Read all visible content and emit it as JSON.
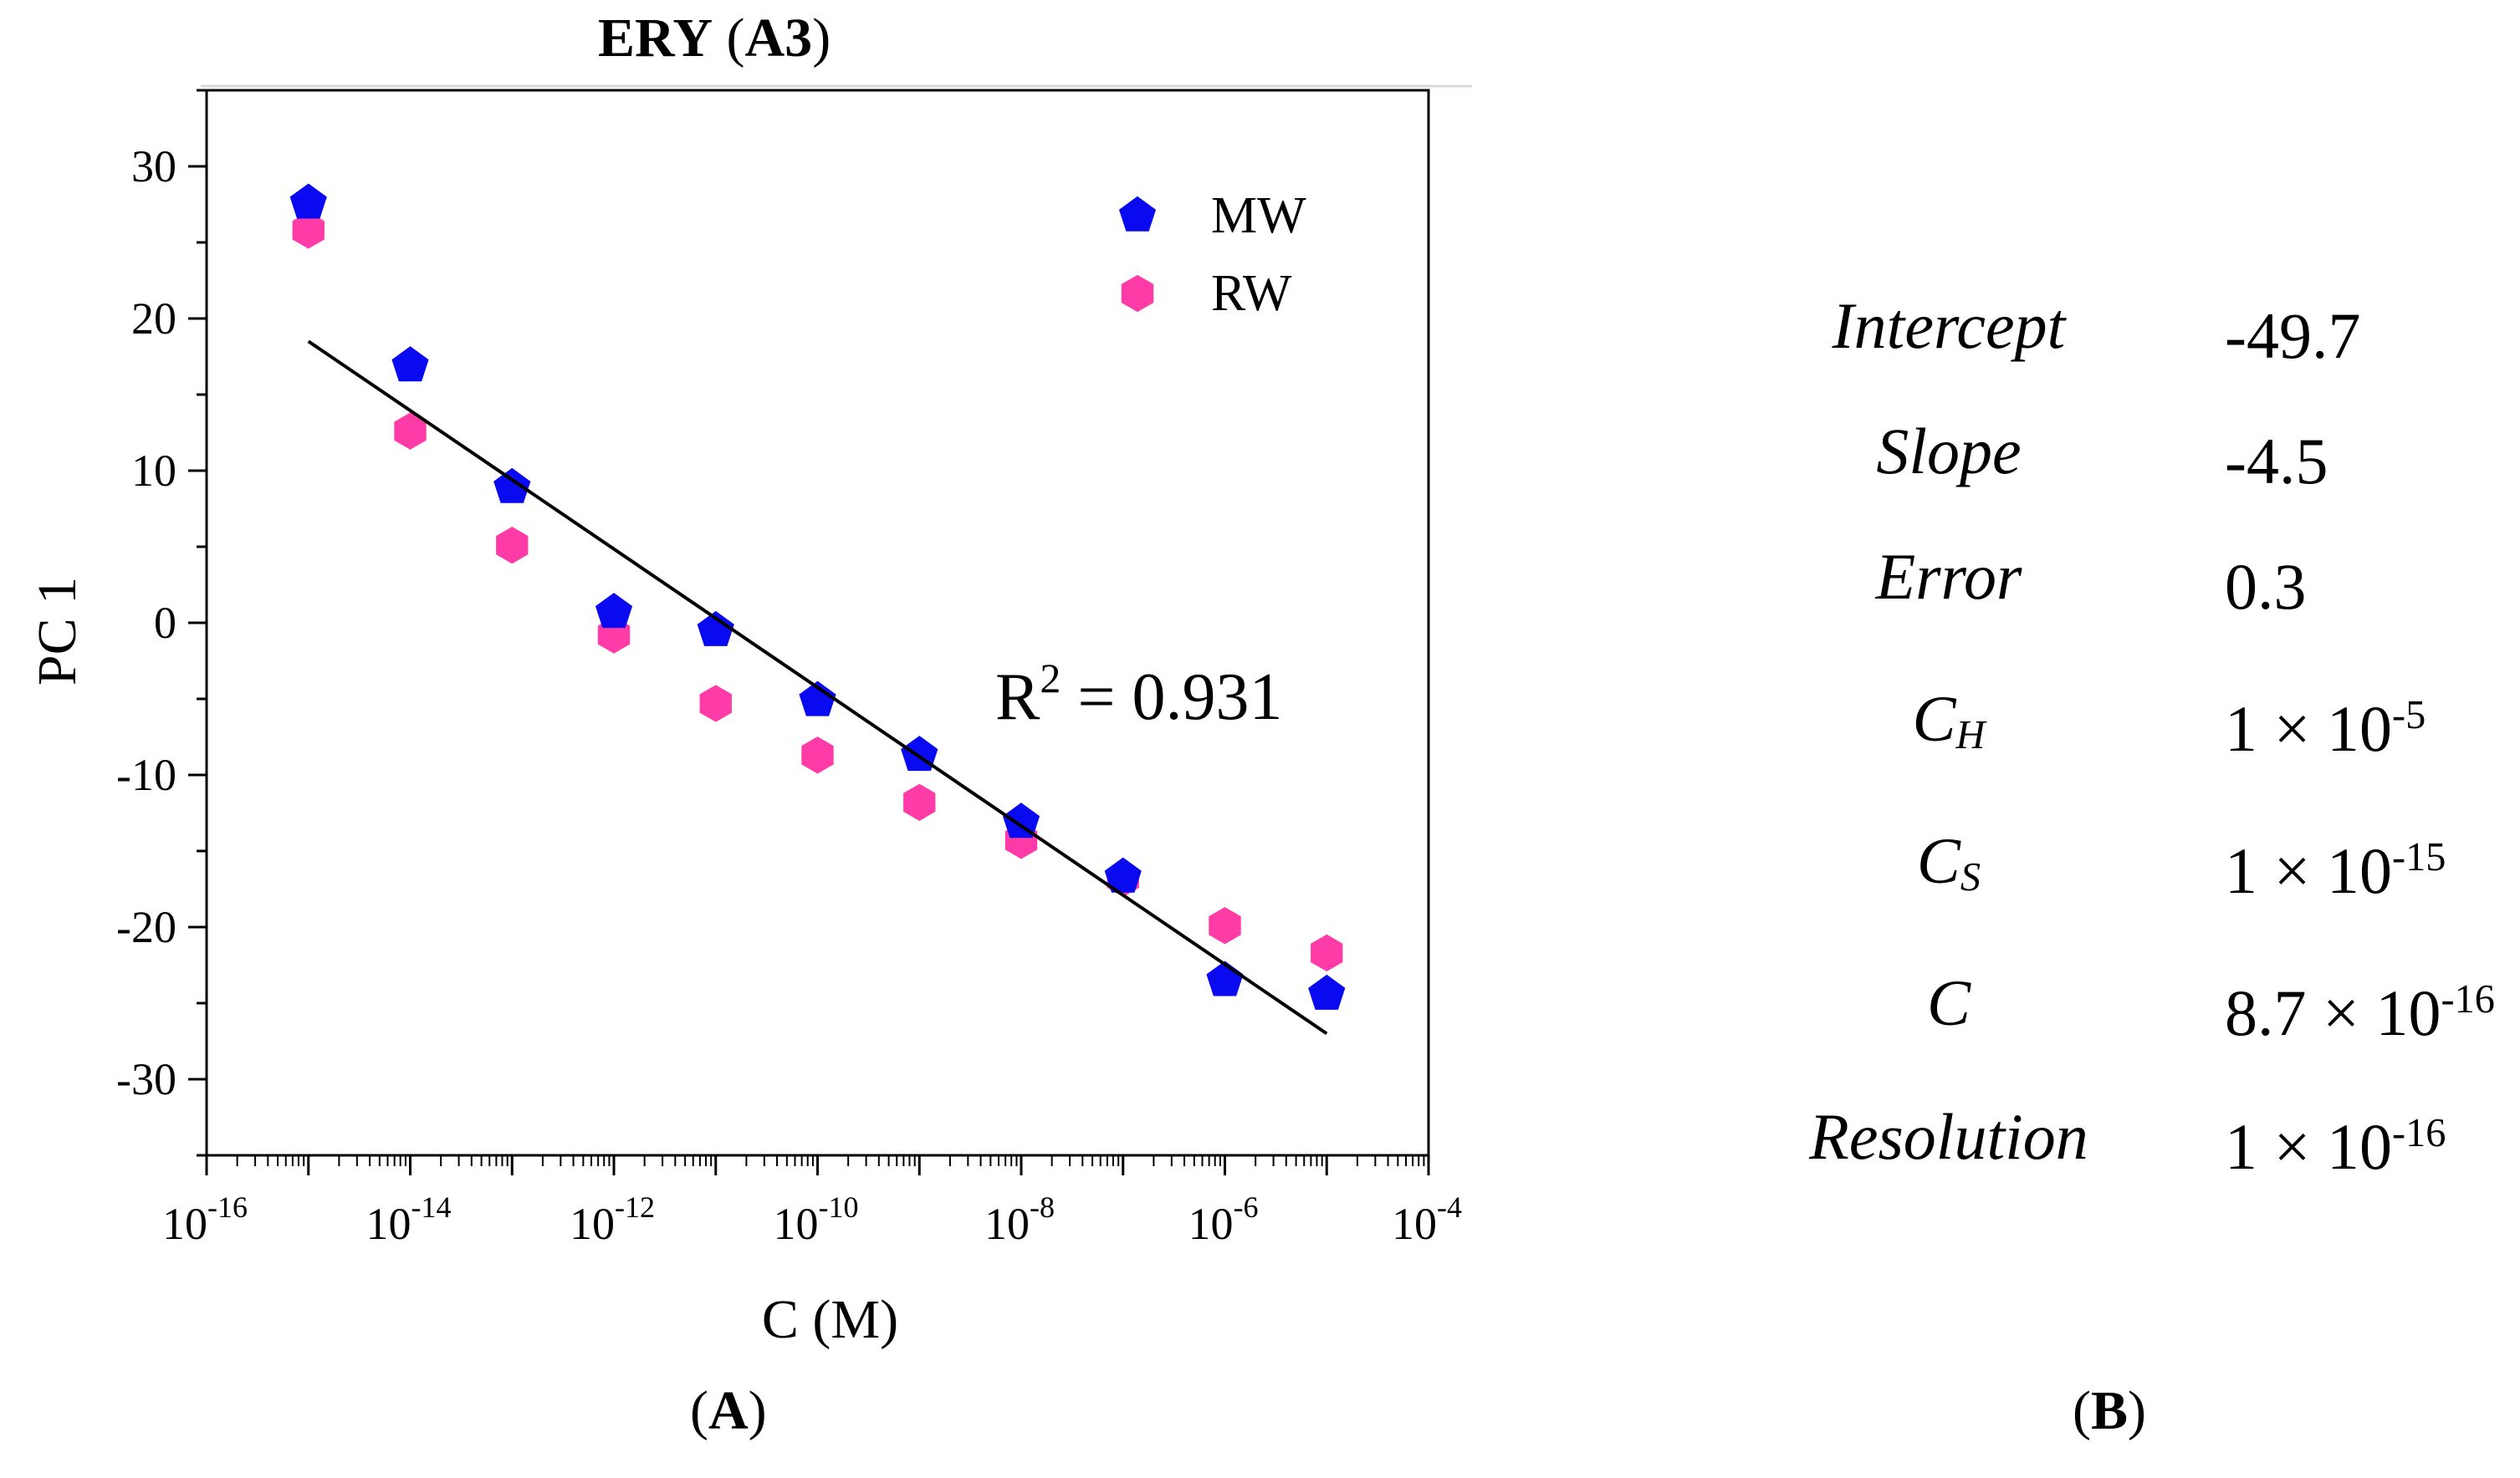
{
  "figure": {
    "title_bold": "ERY",
    "title_paren": "(",
    "title_id": "A3",
    "title_close": ")",
    "panel_a": {
      "open": "(",
      "letter": "A",
      "close": ")"
    },
    "panel_b": {
      "open": "(",
      "letter": "B",
      "close": ")"
    }
  },
  "chart_data": {
    "type": "scatter",
    "title": "ERY (A3)",
    "xlabel": "C (M)",
    "ylabel": "PC 1",
    "xscale": "log10",
    "xlim_exponent": [
      -16,
      -4
    ],
    "ylim": [
      -35,
      35
    ],
    "yticks": [
      -30,
      -20,
      -10,
      0,
      10,
      20,
      30
    ],
    "xtick_exponents": [
      -16,
      -14,
      -12,
      -10,
      -8,
      -6,
      -4
    ],
    "xtick_base": "10",
    "legend_position": "top-right",
    "series": [
      {
        "name": "MW",
        "color": "#0a0af0",
        "marker": "pentagon",
        "x_exponent": [
          -15,
          -14,
          -13,
          -12,
          -11,
          -10,
          -9,
          -8,
          -7,
          -6,
          -5
        ],
        "y": [
          27.6,
          16.9,
          8.9,
          0.7,
          -0.5,
          -5.1,
          -8.7,
          -13.1,
          -16.7,
          -23.5,
          -24.4
        ]
      },
      {
        "name": "RW",
        "color": "#ff3ba8",
        "marker": "hexagon",
        "x_exponent": [
          -15,
          -14,
          -13,
          -12,
          -11,
          -10,
          -9,
          -8,
          -7,
          -6,
          -5
        ],
        "y": [
          25.8,
          12.6,
          5.1,
          -0.8,
          -5.3,
          -8.7,
          -11.8,
          -14.3,
          -16.8,
          -19.9,
          -21.7
        ]
      }
    ],
    "fit_line": {
      "color": "#000000",
      "x_exponent": [
        -15,
        -5
      ],
      "y": [
        18.5,
        -27.0
      ]
    },
    "annotation": {
      "label": "R",
      "sup": "2",
      "rest": " = 0.931"
    }
  },
  "parameters": [
    {
      "name": "Intercept",
      "name_sub": "",
      "value": "-49.7",
      "value_sup": ""
    },
    {
      "name": "Slope",
      "name_sub": "",
      "value": "-4.5",
      "value_sup": ""
    },
    {
      "name": "Error",
      "name_sub": "",
      "value": "0.3",
      "value_sup": ""
    },
    {
      "name": "C",
      "name_sub": "H",
      "value": "1 × 10",
      "value_sup": "-5"
    },
    {
      "name": "C",
      "name_sub": "S",
      "value": "1 × 10",
      "value_sup": "-15"
    },
    {
      "name": "C",
      "name_sub": "",
      "value": "8.7 × 10",
      "value_sup": "-16"
    },
    {
      "name": "Resolution",
      "name_sub": "",
      "value": "1 × 10",
      "value_sup": "-16"
    }
  ]
}
